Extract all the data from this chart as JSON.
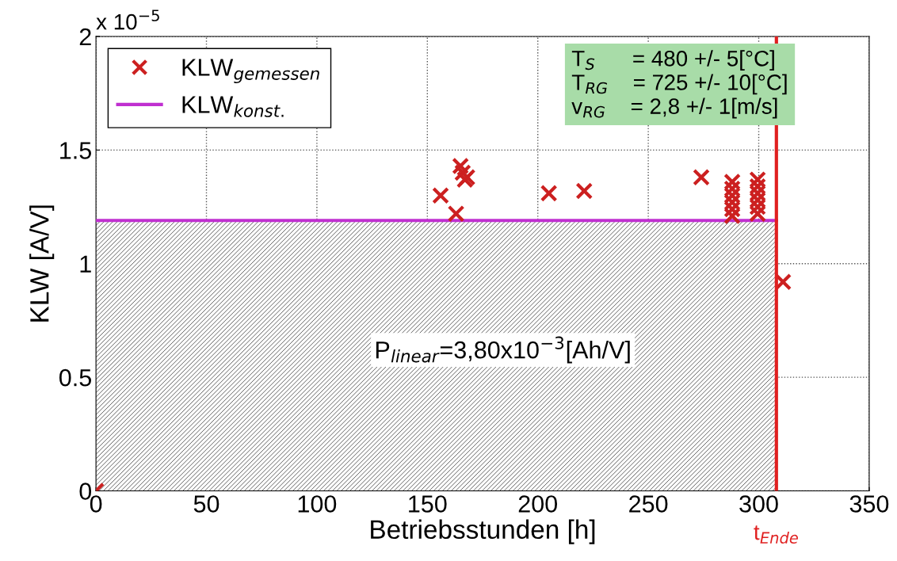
{
  "chart_data": {
    "type": "scatter",
    "xlabel": "Betriebsstunden [h]",
    "ylabel": "KLW [A/V]",
    "xlim": [
      0,
      350
    ],
    "xticks": [
      0,
      50,
      100,
      150,
      200,
      250,
      300,
      350
    ],
    "ylim": [
      0,
      2
    ],
    "yticks": [
      0,
      0.5,
      1,
      1.5,
      2
    ],
    "grid": true,
    "legend": "top left",
    "marker": "cross",
    "series": [
      {
        "name": "KLW$_{gemessen}$",
        "color": "#cc2020",
        "x": [
          0,
          156,
          163,
          165,
          166,
          167,
          168,
          205,
          221,
          274,
          288,
          288,
          288,
          288,
          288,
          288,
          299.5,
          299.5,
          299.5,
          299.5,
          299.5,
          299.5,
          311
        ],
        "values": [
          0,
          1.3,
          1.22,
          1.43,
          1.4,
          1.37,
          1.38,
          1.31,
          1.32,
          1.38,
          1.36,
          1.33,
          1.3,
          1.27,
          1.24,
          1.21,
          1.37,
          1.34,
          1.31,
          1.28,
          1.25,
          1.22,
          0.92
        ]
      },
      {
        "name": "KLW$_{konst.}$",
        "type": "area",
        "marker": "none",
        "color": "#c030d0",
        "x": [
          0,
          308
        ],
        "values": [
          1.19,
          1.19
        ]
      }
    ],
    "ref_lines": [
      {
        "axis": "x",
        "value": 308,
        "label": "t$_{Ende}$",
        "color": "#e02020"
      }
    ],
    "annotations": [
      "x 10$^{−5}$",
      "T$_{S}$      = 480 +/- 5[°C]\nT$_{RG}$    = 725 +/- 10[°C]\nv$_{RG}$    = 2,8 +/- 1[m/s]",
      "P$_{linear}$=3,80x10$^{−3}$[Ah/V]"
    ]
  }
}
